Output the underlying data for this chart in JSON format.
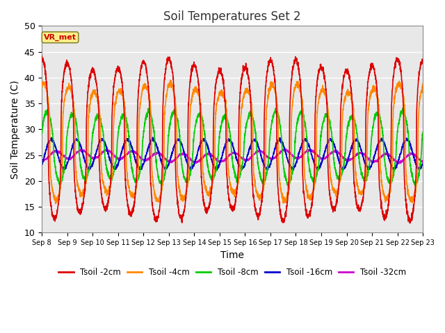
{
  "title": "Soil Temperatures Set 2",
  "xlabel": "Time",
  "ylabel": "Soil Temperature (C)",
  "ylim": [
    10,
    50
  ],
  "annotation_label": "VR_met",
  "annotation_color": "#cc0000",
  "annotation_bg": "#ffee88",
  "bg_color": "#e8e8e8",
  "series_colors": {
    "Tsoil -2cm": "#dd0000",
    "Tsoil -4cm": "#ff8800",
    "Tsoil -8cm": "#00cc00",
    "Tsoil -16cm": "#0000cc",
    "Tsoil -32cm": "#cc00cc"
  },
  "tick_labels": [
    "Sep 8",
    "Sep 9",
    "Sep 10",
    "Sep 11",
    "Sep 12",
    "Sep 13",
    "Sep 14",
    "Sep 15",
    "Sep 16",
    "Sep 17",
    "Sep 18",
    "Sep 19",
    "Sep 20",
    "Sep 21",
    "Sep 22",
    "Sep 23"
  ],
  "yticks": [
    10,
    15,
    20,
    25,
    30,
    35,
    40,
    45,
    50
  ],
  "lw": 1.2
}
